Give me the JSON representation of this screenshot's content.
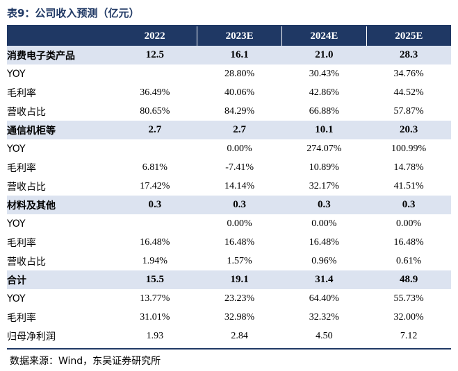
{
  "title": "表9：公司收入预测（亿元）",
  "header": [
    "",
    "2022",
    "2023E",
    "2024E",
    "2025E"
  ],
  "rows": [
    {
      "type": "section",
      "label": "消费电子类产品",
      "values": [
        "12.5",
        "16.1",
        "21.0",
        "28.3"
      ]
    },
    {
      "type": "data",
      "label": "YOY",
      "values": [
        "",
        "28.80%",
        "30.43%",
        "34.76%"
      ]
    },
    {
      "type": "data",
      "label": "毛利率",
      "values": [
        "36.49%",
        "40.06%",
        "42.86%",
        "44.52%"
      ]
    },
    {
      "type": "data",
      "label": "营收占比",
      "values": [
        "80.65%",
        "84.29%",
        "66.88%",
        "57.87%"
      ]
    },
    {
      "type": "section",
      "label": "通信机柜等",
      "values": [
        "2.7",
        "2.7",
        "10.1",
        "20.3"
      ]
    },
    {
      "type": "data",
      "label": "YOY",
      "values": [
        "",
        "0.00%",
        "274.07%",
        "100.99%"
      ]
    },
    {
      "type": "data",
      "label": "毛利率",
      "values": [
        "6.81%",
        "-7.41%",
        "10.89%",
        "14.78%"
      ]
    },
    {
      "type": "data",
      "label": "营收占比",
      "values": [
        "17.42%",
        "14.14%",
        "32.17%",
        "41.51%"
      ]
    },
    {
      "type": "section",
      "label": "材料及其他",
      "values": [
        "0.3",
        "0.3",
        "0.3",
        "0.3"
      ]
    },
    {
      "type": "data",
      "label": "YOY",
      "values": [
        "",
        "0.00%",
        "0.00%",
        "0.00%"
      ]
    },
    {
      "type": "data",
      "label": "毛利率",
      "values": [
        "16.48%",
        "16.48%",
        "16.48%",
        "16.48%"
      ]
    },
    {
      "type": "data",
      "label": "营收占比",
      "values": [
        "1.94%",
        "1.57%",
        "0.96%",
        "0.61%"
      ]
    },
    {
      "type": "section",
      "label": "合计",
      "values": [
        "15.5",
        "19.1",
        "31.4",
        "48.9"
      ]
    },
    {
      "type": "data",
      "label": "YOY",
      "values": [
        "13.77%",
        "23.23%",
        "64.40%",
        "55.73%"
      ]
    },
    {
      "type": "data",
      "label": "毛利率",
      "values": [
        "31.01%",
        "32.98%",
        "32.32%",
        "32.00%"
      ]
    },
    {
      "type": "data",
      "label": "归母净利润",
      "values": [
        "1.93",
        "2.84",
        "4.50",
        "7.12"
      ]
    }
  ],
  "source": "数据来源：Wind，东吴证券研究所",
  "colors": {
    "header_bg": "#1f3864",
    "section_bg": "#dce3f0",
    "title": "#1f3864"
  }
}
